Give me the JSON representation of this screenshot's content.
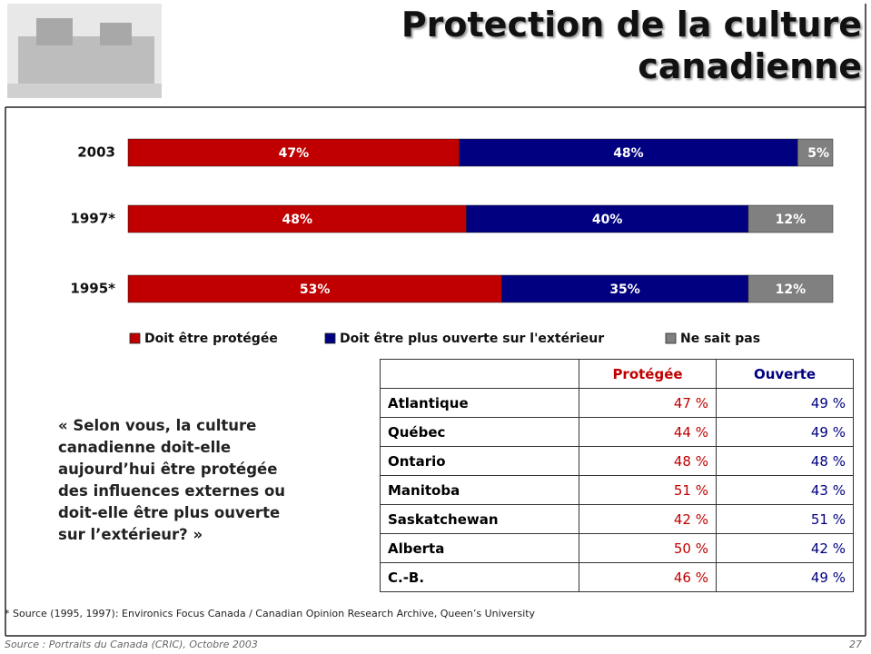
{
  "title": [
    "Protection de la culture",
    "canadienne"
  ],
  "chart_data": {
    "type": "stacked-bar-horizontal",
    "categories": [
      "2003",
      "1997*",
      "1995*"
    ],
    "xlim": [
      0,
      100
    ],
    "series": [
      {
        "name": "Doit être protégée",
        "color": "#c00000",
        "values": [
          47,
          48,
          53
        ],
        "value_labels": [
          "47%",
          "48%",
          "53%"
        ]
      },
      {
        "name": "Doit être plus ouverte sur l'extérieur",
        "color": "#000080",
        "values": [
          48,
          40,
          35
        ],
        "value_labels": [
          "48%",
          "40%",
          "35%"
        ]
      },
      {
        "name": "Ne sait pas",
        "color": "#808080",
        "values": [
          5,
          12,
          12
        ],
        "value_labels": [
          "5%",
          "12%",
          "12%"
        ]
      }
    ]
  },
  "question": "« Selon vous, la culture canadienne doit-elle aujourd’hui être protégée des influences externes ou doit-elle être plus ouverte sur l’extérieur? »",
  "table": {
    "header": [
      "Protégée",
      "Ouverte"
    ],
    "rows": [
      [
        "Atlantique",
        "47 %",
        "49 %"
      ],
      [
        "Québec",
        "44 %",
        "49 %"
      ],
      [
        "Ontario",
        "48 %",
        "48 %"
      ],
      [
        "Manitoba",
        "51 %",
        "43 %"
      ],
      [
        "Saskatchewan",
        "42 %",
        "51 %"
      ],
      [
        "Alberta",
        "50 %",
        "42 %"
      ],
      [
        "C.-B.",
        "46 %",
        "49 %"
      ]
    ]
  },
  "source_note": "* Source (1995, 1997): Environics Focus Canada / Canadian Opinion Research Archive, Queen’s University",
  "footer": "Source : Portraits du Canada (CRIC), Octobre 2003",
  "page_number": "27"
}
